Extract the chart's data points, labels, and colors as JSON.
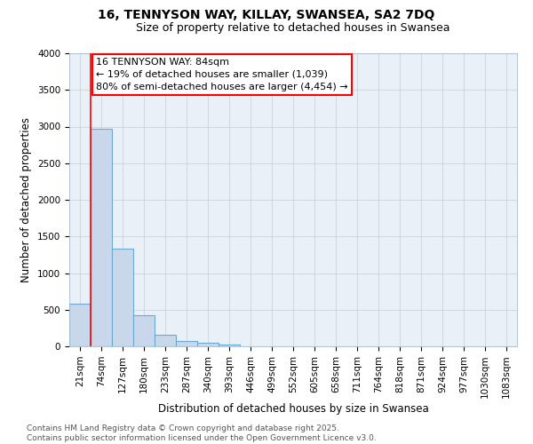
{
  "title1": "16, TENNYSON WAY, KILLAY, SWANSEA, SA2 7DQ",
  "title2": "Size of property relative to detached houses in Swansea",
  "xlabel": "Distribution of detached houses by size in Swansea",
  "ylabel": "Number of detached properties",
  "categories": [
    "21sqm",
    "74sqm",
    "127sqm",
    "180sqm",
    "233sqm",
    "287sqm",
    "340sqm",
    "393sqm",
    "446sqm",
    "499sqm",
    "552sqm",
    "605sqm",
    "658sqm",
    "711sqm",
    "764sqm",
    "818sqm",
    "871sqm",
    "924sqm",
    "977sqm",
    "1030sqm",
    "1083sqm"
  ],
  "values": [
    580,
    2970,
    1330,
    420,
    160,
    70,
    45,
    30,
    5,
    0,
    0,
    0,
    0,
    0,
    0,
    0,
    0,
    0,
    0,
    0,
    0
  ],
  "bar_color": "#c8d8ea",
  "bar_edge_color": "#6aaad4",
  "bar_edge_width": 0.8,
  "grid_color": "#c8d4e0",
  "background_color": "#ffffff",
  "plot_bg_color": "#eaf0f8",
  "annotation_text": "16 TENNYSON WAY: 84sqm\n← 19% of detached houses are smaller (1,039)\n80% of semi-detached houses are larger (4,454) →",
  "annotation_box_color": "white",
  "annotation_box_edge_color": "red",
  "red_line_color": "red",
  "ylim": [
    0,
    4000
  ],
  "yticks": [
    0,
    500,
    1000,
    1500,
    2000,
    2500,
    3000,
    3500,
    4000
  ],
  "footnote": "Contains HM Land Registry data © Crown copyright and database right 2025.\nContains public sector information licensed under the Open Government Licence v3.0.",
  "title_fontsize": 10,
  "subtitle_fontsize": 9,
  "axis_label_fontsize": 8.5,
  "tick_fontsize": 7.5,
  "annotation_fontsize": 8,
  "footnote_fontsize": 6.5
}
